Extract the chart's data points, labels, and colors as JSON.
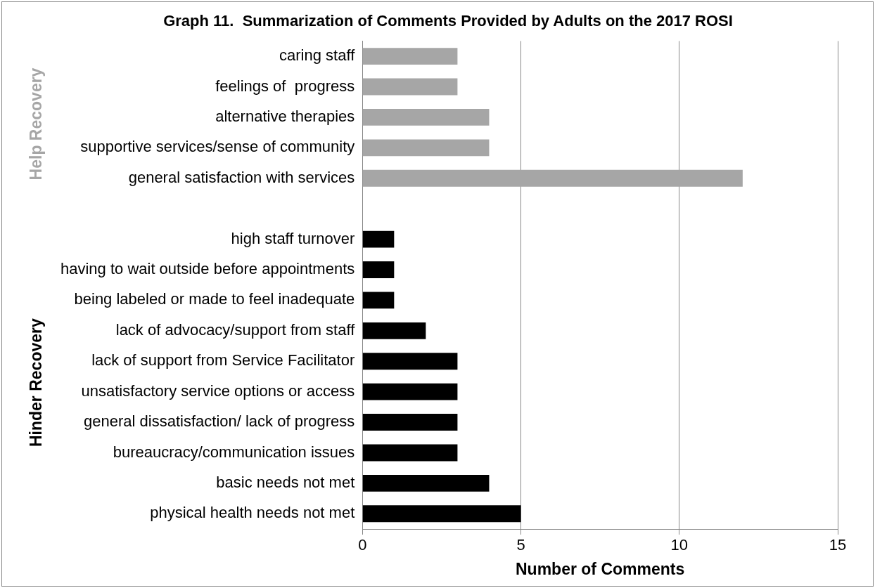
{
  "chart_data": {
    "type": "bar",
    "orientation": "horizontal",
    "title": "Graph 11.  Summarization of Comments Provided by Adults on the 2017 ROSI",
    "xlabel": "Number of Comments",
    "categories": [
      "caring staff",
      "feelings of  progress",
      "alternative therapies",
      "supportive services/sense of community",
      "general satisfaction with services",
      null,
      "high staff turnover",
      "having to wait outside before appointments",
      "being labeled or made to feel inadequate",
      "lack of advocacy/support from staff",
      "lack of support from Service Facilitator",
      "unsatisfactory service options or access",
      "general dissatisfaction/ lack of progress",
      "bureaucracy/communication issues",
      "basic needs not met",
      "physical health needs not met"
    ],
    "values": [
      3,
      3,
      4,
      4,
      12,
      null,
      1,
      1,
      1,
      2,
      3,
      3,
      3,
      3,
      4,
      5
    ],
    "colors": [
      "#a6a6a6",
      "#a6a6a6",
      "#a6a6a6",
      "#a6a6a6",
      "#a6a6a6",
      "#a6a6a6",
      "#000000",
      "#000000",
      "#000000",
      "#000000",
      "#000000",
      "#000000",
      "#000000",
      "#000000",
      "#000000",
      "#000000"
    ],
    "xlim": [
      0,
      15
    ],
    "xticks": [
      0,
      5,
      10,
      15
    ],
    "grid": "x",
    "annotations": [
      "Help Recovery",
      "Hinder Recovery"
    ]
  }
}
